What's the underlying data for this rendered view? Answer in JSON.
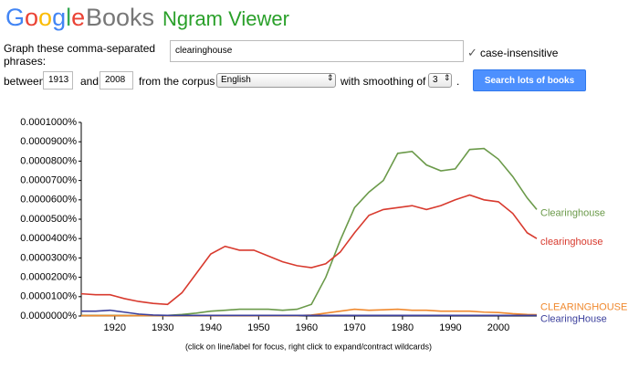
{
  "header": {
    "google": "Google",
    "books": "Books",
    "product": "Ngram Viewer"
  },
  "form": {
    "phrases_label_1": "Graph these comma-separated",
    "phrases_label_2": "phrases:",
    "query": "clearinghouse",
    "case_label": "case-insensitive",
    "between": "between",
    "start_year": "1913",
    "and": "and",
    "end_year": "2008",
    "from_corpus": "from the corpus",
    "corpus": "English",
    "smoothing_label": "with smoothing of",
    "smoothing": "3",
    "period": ".",
    "button": "Search lots of books"
  },
  "chart_data": {
    "type": "line",
    "note": "(click on line/label for focus, right click to expand/contract wildcards)",
    "xlim": [
      1913,
      2008
    ],
    "xticks": [
      1920,
      1930,
      1940,
      1950,
      1960,
      1970,
      1980,
      1990,
      2000
    ],
    "ylim": [
      0,
      0.0001
    ],
    "yticks": [
      {
        "value": 0,
        "label": "0.0000000%"
      },
      {
        "value": 1e-05,
        "label": "0.0000100%"
      },
      {
        "value": 2e-05,
        "label": "0.0000200%"
      },
      {
        "value": 3e-05,
        "label": "0.0000300%"
      },
      {
        "value": 4e-05,
        "label": "0.0000400%"
      },
      {
        "value": 5e-05,
        "label": "0.0000500%"
      },
      {
        "value": 6e-05,
        "label": "0.0000600%"
      },
      {
        "value": 7e-05,
        "label": "0.0000700%"
      },
      {
        "value": 8e-05,
        "label": "0.0000800%"
      },
      {
        "value": 9e-05,
        "label": "0.0000900%"
      },
      {
        "value": 0.0001,
        "label": "0.0001000%"
      }
    ],
    "x": [
      1913,
      1916,
      1919,
      1922,
      1925,
      1928,
      1931,
      1934,
      1937,
      1940,
      1943,
      1946,
      1949,
      1952,
      1955,
      1958,
      1961,
      1964,
      1967,
      1970,
      1973,
      1976,
      1979,
      1982,
      1985,
      1988,
      1991,
      1994,
      1997,
      2000,
      2003,
      2006,
      2008
    ],
    "series": [
      {
        "name": "Clearinghouse",
        "color": "#6b9a4a",
        "values": [
          3e-07,
          3e-07,
          3e-07,
          3e-07,
          2e-07,
          2e-07,
          3e-07,
          8e-07,
          1.5e-06,
          2.5e-06,
          3e-06,
          3.5e-06,
          3.5e-06,
          3.5e-06,
          3e-06,
          3.5e-06,
          6e-06,
          2e-05,
          3.9e-05,
          5.6e-05,
          6.4e-05,
          7e-05,
          8.4e-05,
          8.5e-05,
          7.8e-05,
          7.5e-05,
          7.6e-05,
          8.6e-05,
          8.65e-05,
          8.1e-05,
          7.2e-05,
          6.1e-05,
          5.5e-05
        ]
      },
      {
        "name": "clearinghouse",
        "color": "#d83a2e",
        "values": [
          1.15e-05,
          1.1e-05,
          1.1e-05,
          9e-06,
          7.5e-06,
          6.5e-06,
          6e-06,
          1.2e-05,
          2.2e-05,
          3.2e-05,
          3.6e-05,
          3.4e-05,
          3.4e-05,
          3.1e-05,
          2.8e-05,
          2.6e-05,
          2.5e-05,
          2.7e-05,
          3.3e-05,
          4.3e-05,
          5.2e-05,
          5.5e-05,
          5.6e-05,
          5.7e-05,
          5.5e-05,
          5.7e-05,
          6e-05,
          6.25e-05,
          6e-05,
          5.9e-05,
          5.3e-05,
          4.3e-05,
          4e-05
        ]
      },
      {
        "name": "CLEARINGHOUSE",
        "color": "#f0892e",
        "values": [
          2e-07,
          2e-07,
          2e-07,
          2e-07,
          2e-07,
          2e-07,
          2e-07,
          2e-07,
          2e-07,
          2e-07,
          2e-07,
          2e-07,
          2e-07,
          2e-07,
          2e-07,
          2e-07,
          5e-07,
          1.5e-06,
          2.5e-06,
          3.5e-06,
          3e-06,
          3.2e-06,
          3.5e-06,
          3e-06,
          3e-06,
          2.5e-06,
          2.5e-06,
          2.5e-06,
          2e-06,
          1.8e-06,
          1.2e-06,
          8e-07,
          7e-07
        ]
      },
      {
        "name": "ClearingHouse",
        "color": "#3b3f9c",
        "values": [
          2.5e-06,
          2.5e-06,
          3e-06,
          2e-06,
          1e-06,
          5e-07,
          3e-07,
          3e-07,
          3e-07,
          3e-07,
          3e-07,
          3e-07,
          3e-07,
          3e-07,
          3e-07,
          3e-07,
          3e-07,
          3e-07,
          3e-07,
          3e-07,
          3e-07,
          3e-07,
          3e-07,
          3e-07,
          3e-07,
          3e-07,
          3e-07,
          3e-07,
          3e-07,
          3e-07,
          3e-07,
          3e-07,
          3e-07
        ]
      }
    ]
  }
}
